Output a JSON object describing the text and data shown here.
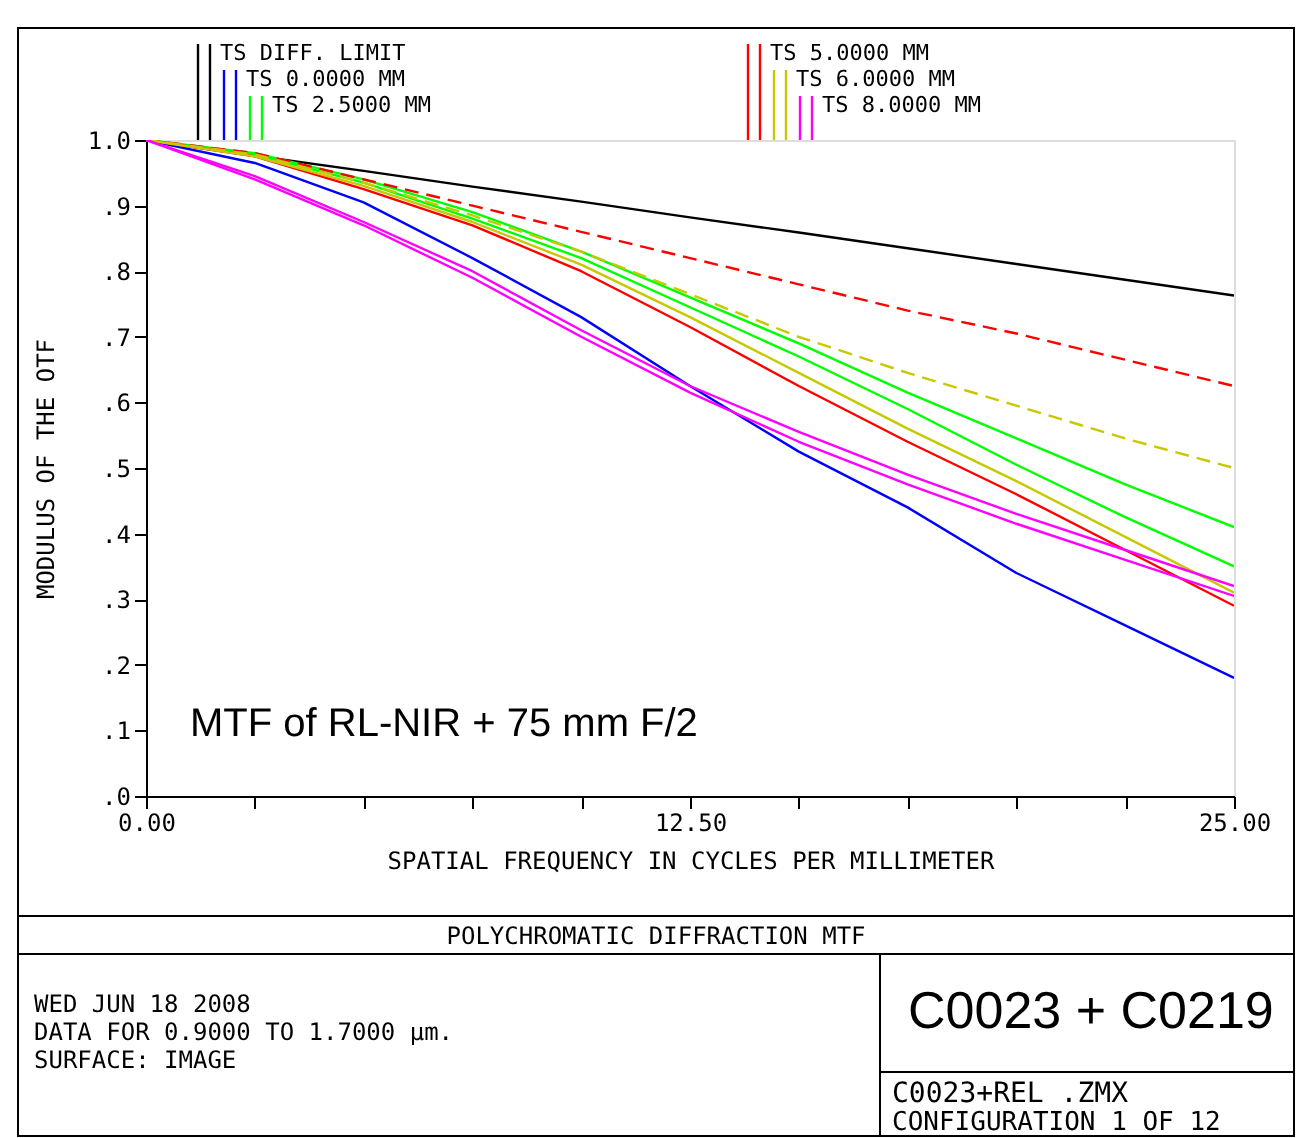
{
  "chart_data": {
    "type": "line",
    "title": "POLYCHROMATIC DIFFRACTION MTF",
    "xlabel": "SPATIAL FREQUENCY IN CYCLES PER MILLIMETER",
    "ylabel": "MODULUS OF THE OTF",
    "x": [
      0,
      2.5,
      5,
      7.5,
      10,
      12.5,
      15,
      17.5,
      20,
      22.5,
      25
    ],
    "series": [
      {
        "name": "TS DIFF. LIMIT",
        "color": "#000000",
        "line_style": "solid",
        "values": [
          1,
          0.976,
          0.953,
          0.929,
          0.906,
          0.882,
          0.859,
          0.835,
          0.811,
          0.787,
          0.763
        ]
      },
      {
        "name": "TS 0.0000 MM",
        "color": "#0000ff",
        "line_style": "solid",
        "values": [
          1,
          0.965,
          0.905,
          0.82,
          0.73,
          0.625,
          0.525,
          0.44,
          0.34,
          0.26,
          0.18
        ]
      },
      {
        "name": "TS 2.5000 MM",
        "color": "#00ff00",
        "line_style": "solid",
        "values": [
          1,
          0.98,
          0.94,
          0.89,
          0.83,
          0.76,
          0.69,
          0.615,
          0.545,
          0.475,
          0.41
        ]
      },
      {
        "color": "#00ff00",
        "line_style": "solid",
        "values": [
          1,
          0.978,
          0.935,
          0.88,
          0.82,
          0.745,
          0.67,
          0.59,
          0.505,
          0.425,
          0.35
        ]
      },
      {
        "name": "TS 5.0000 MM",
        "color": "#ff0000",
        "line_style": "solid",
        "values": [
          1,
          0.975,
          0.925,
          0.87,
          0.8,
          0.715,
          0.625,
          0.54,
          0.46,
          0.375,
          0.29
        ]
      },
      {
        "color": "#ff0000",
        "line_style": "dashed",
        "values": [
          1,
          0.98,
          0.94,
          0.9,
          0.86,
          0.82,
          0.78,
          0.74,
          0.705,
          0.665,
          0.625
        ]
      },
      {
        "name": "TS 6.0000 MM",
        "color": "#c8c800",
        "line_style": "solid",
        "values": [
          1,
          0.975,
          0.93,
          0.875,
          0.81,
          0.73,
          0.645,
          0.56,
          0.48,
          0.395,
          0.31
        ]
      },
      {
        "color": "#c8c800",
        "line_style": "dashed",
        "values": [
          1,
          0.978,
          0.935,
          0.885,
          0.83,
          0.765,
          0.7,
          0.645,
          0.595,
          0.545,
          0.5
        ]
      },
      {
        "name": "TS 8.0000 MM",
        "color": "#ff00ff",
        "line_style": "solid",
        "values": [
          1,
          0.94,
          0.87,
          0.79,
          0.7,
          0.615,
          0.54,
          0.475,
          0.415,
          0.36,
          0.305
        ]
      },
      {
        "color": "#ff00ff",
        "line_style": "solid",
        "values": [
          1,
          0.945,
          0.875,
          0.8,
          0.71,
          0.625,
          0.555,
          0.49,
          0.43,
          0.375,
          0.32
        ]
      }
    ],
    "xlim": [
      0,
      25
    ],
    "xticks": [
      {
        "value": 0,
        "label": "0.00"
      },
      {
        "value": 2.5,
        "label": null
      },
      {
        "value": 5,
        "label": null
      },
      {
        "value": 7.5,
        "label": null
      },
      {
        "value": 10,
        "label": null
      },
      {
        "value": 12.5,
        "label": "12.50"
      },
      {
        "value": 15,
        "label": null
      },
      {
        "value": 17.5,
        "label": null
      },
      {
        "value": 20,
        "label": null
      },
      {
        "value": 22.5,
        "label": null
      },
      {
        "value": 25,
        "label": "25.00"
      }
    ],
    "ylim": [
      0,
      1
    ],
    "yticks": [
      {
        "value": 0,
        "label": ".0"
      },
      {
        "value": 0.1,
        "label": ".1"
      },
      {
        "value": 0.2,
        "label": ".2"
      },
      {
        "value": 0.3,
        "label": ".3"
      },
      {
        "value": 0.4,
        "label": ".4"
      },
      {
        "value": 0.5,
        "label": ".5"
      },
      {
        "value": 0.6,
        "label": ".6"
      },
      {
        "value": 0.7,
        "label": ".7"
      },
      {
        "value": 0.8,
        "label": ".8"
      },
      {
        "value": 0.9,
        "label": ".9"
      },
      {
        "value": 1,
        "label": "1.0"
      }
    ],
    "grid": false,
    "legend": "top",
    "marker": "none",
    "annotations": [
      "MTF of RL-NIR + 75 mm F/2",
      "WED JUN 18 2008",
      "DATA FOR 0.9000 TO 1.7000 µm.",
      "SURFACE: IMAGE",
      "C0023 + C0219",
      "C0023+REL .ZMX",
      "CONFIGURATION 1 OF 12"
    ]
  }
}
